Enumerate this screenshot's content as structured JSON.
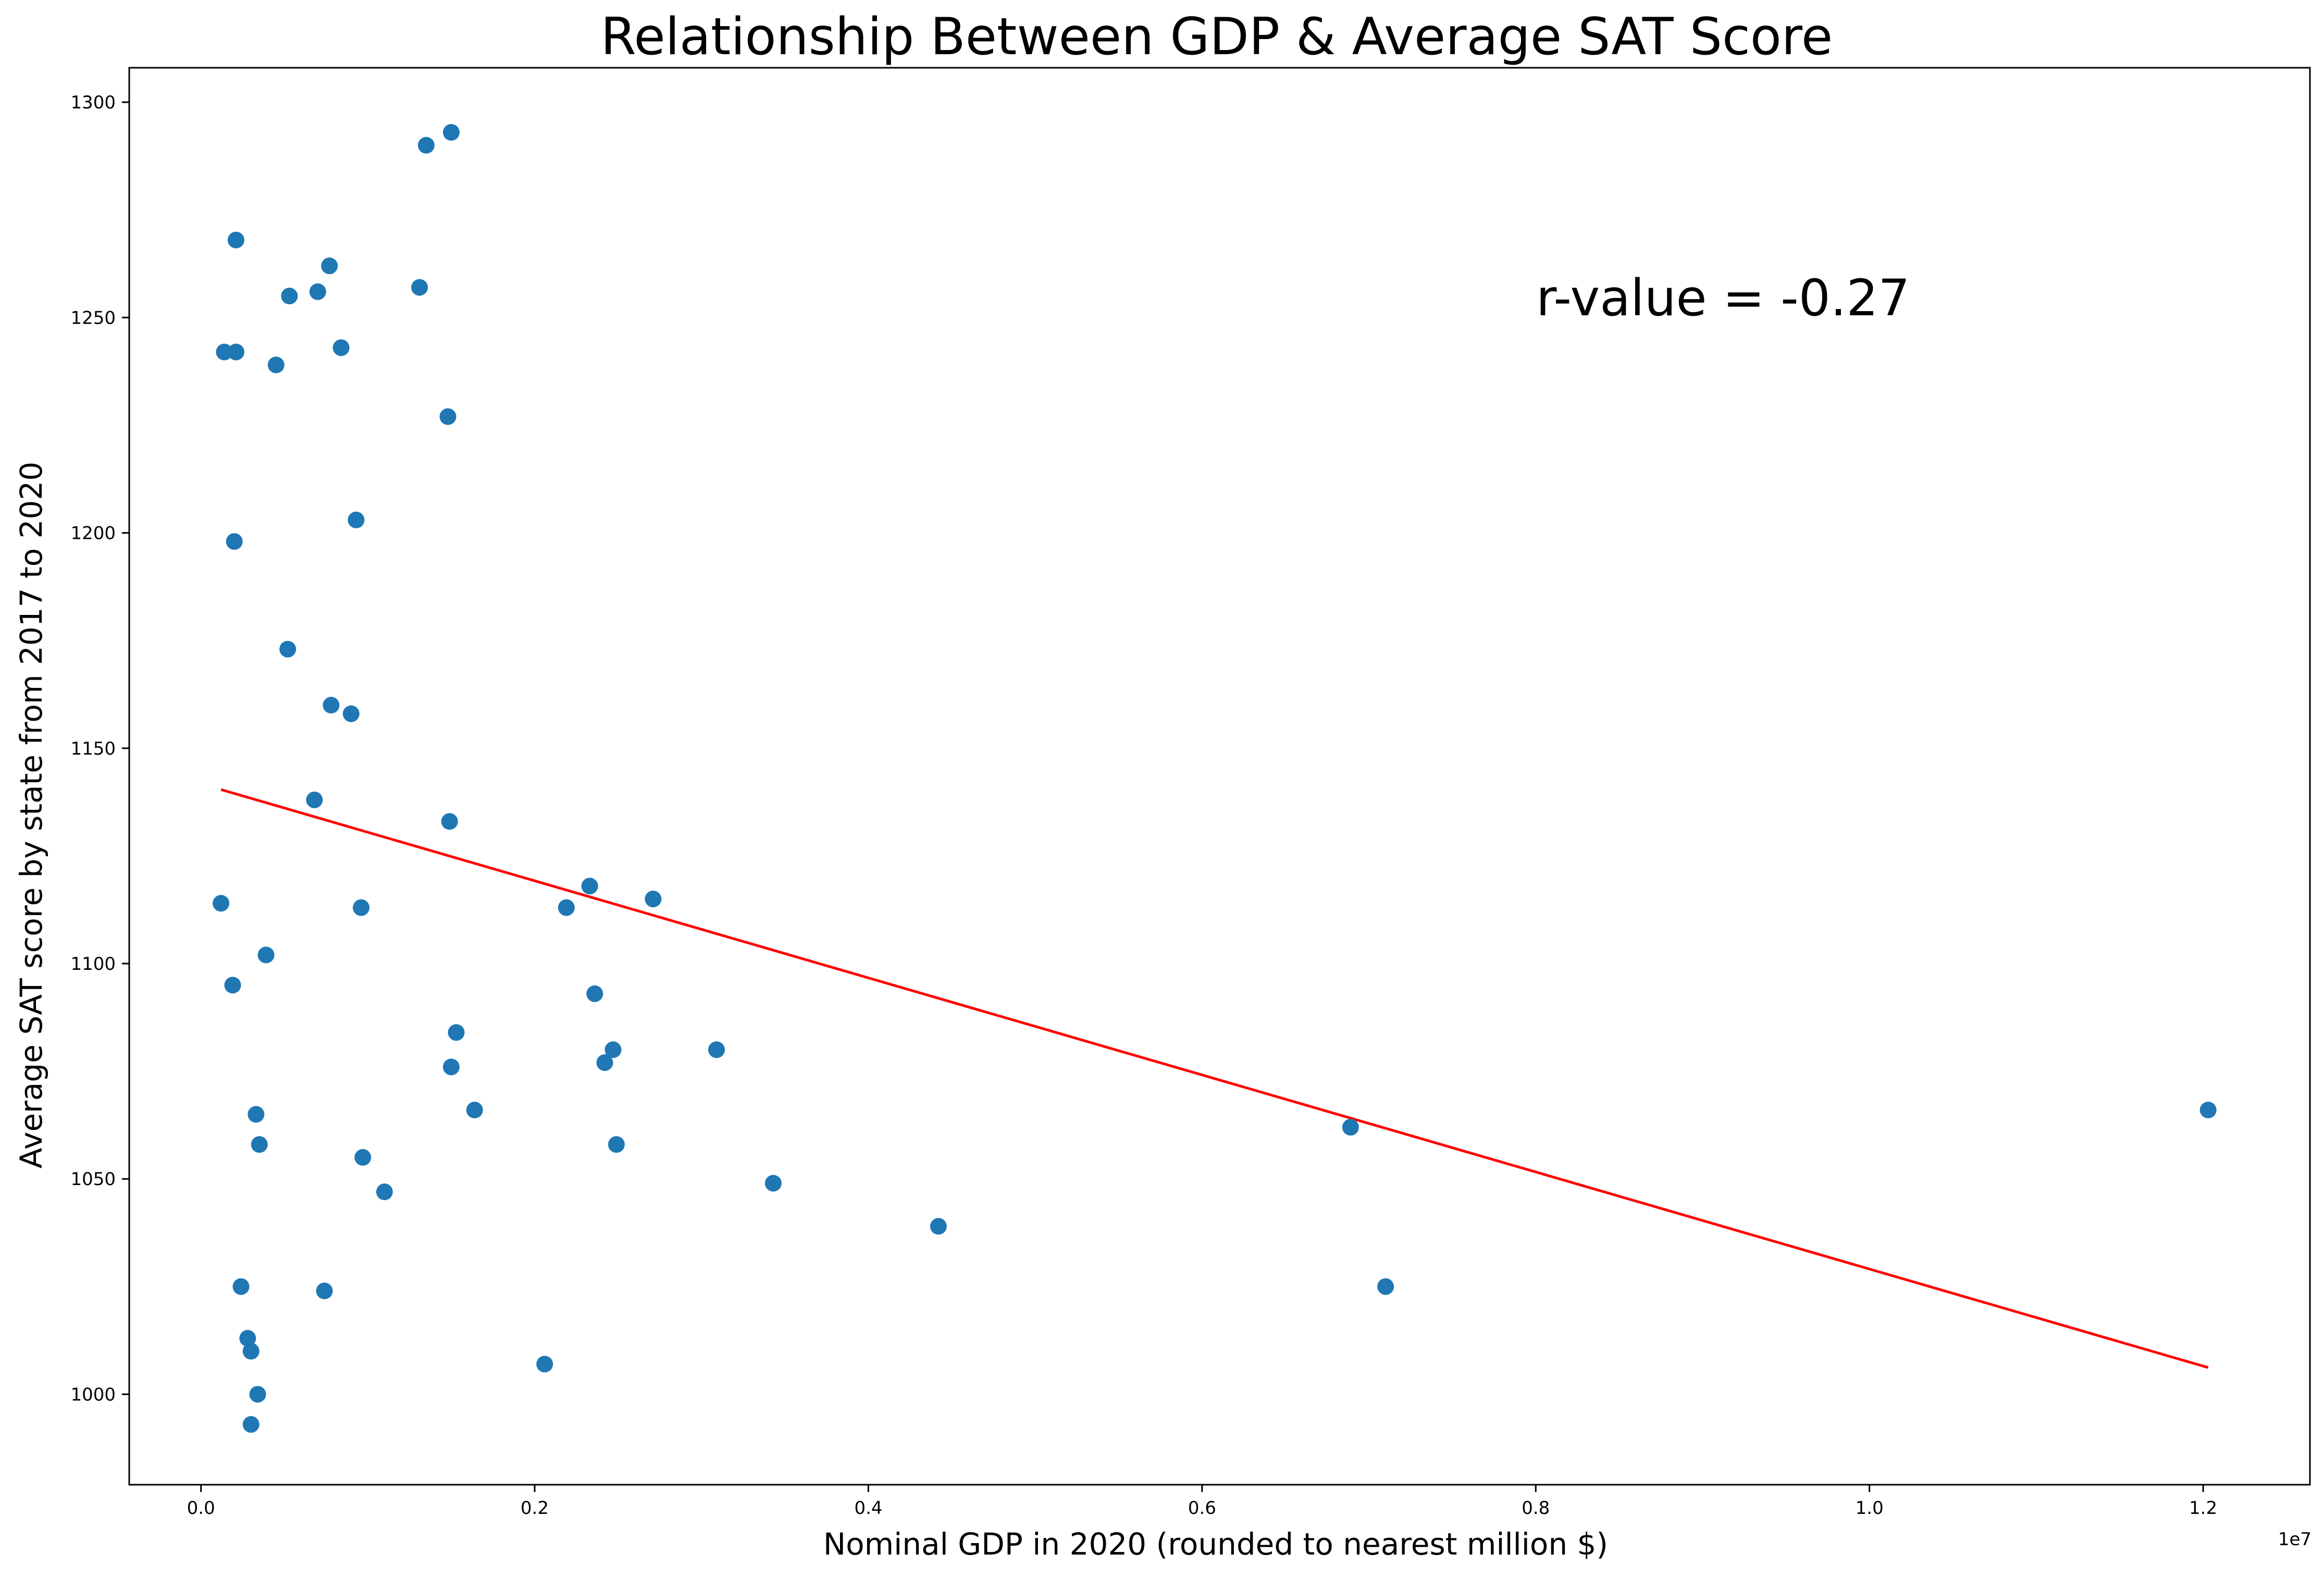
{
  "chart_data": {
    "type": "scatter",
    "title": "Relationship Between GDP & Average SAT Score",
    "xlabel": "Nominal GDP in 2020 (rounded to nearest million $)",
    "ylabel": "Average SAT score by state from 2017 to 2020",
    "x_offset_label": "1e7",
    "annotation": "r-value = -0.27",
    "xlim": [
      -430000,
      12640000
    ],
    "ylim": [
      979,
      1308
    ],
    "x_ticks": [
      {
        "value": 0,
        "label": "0.0"
      },
      {
        "value": 2000000,
        "label": "0.2"
      },
      {
        "value": 4000000,
        "label": "0.4"
      },
      {
        "value": 6000000,
        "label": "0.6"
      },
      {
        "value": 8000000,
        "label": "0.8"
      },
      {
        "value": 10000000,
        "label": "1.0"
      },
      {
        "value": 12000000,
        "label": "1.2"
      }
    ],
    "y_ticks": [
      {
        "value": 1000,
        "label": "1000"
      },
      {
        "value": 1050,
        "label": "1050"
      },
      {
        "value": 1100,
        "label": "1100"
      },
      {
        "value": 1150,
        "label": "1150"
      },
      {
        "value": 1200,
        "label": "1200"
      },
      {
        "value": 1250,
        "label": "1250"
      },
      {
        "value": 1300,
        "label": "1300"
      }
    ],
    "grid": false,
    "colors": {
      "points": "#1f77b4",
      "regression": "#ff0000",
      "axes": "#000000"
    },
    "series": [
      {
        "type": "scatter",
        "points": [
          [
            120000,
            1114
          ],
          [
            140000,
            1242
          ],
          [
            190000,
            1095
          ],
          [
            200000,
            1198
          ],
          [
            210000,
            1242
          ],
          [
            210000,
            1268
          ],
          [
            240000,
            1025
          ],
          [
            280000,
            1013
          ],
          [
            300000,
            993
          ],
          [
            300000,
            1010
          ],
          [
            330000,
            1065
          ],
          [
            340000,
            1000
          ],
          [
            350000,
            1058
          ],
          [
            390000,
            1102
          ],
          [
            450000,
            1239
          ],
          [
            520000,
            1173
          ],
          [
            530000,
            1255
          ],
          [
            680000,
            1138
          ],
          [
            700000,
            1256
          ],
          [
            740000,
            1024
          ],
          [
            770000,
            1262
          ],
          [
            780000,
            1160
          ],
          [
            840000,
            1243
          ],
          [
            900000,
            1158
          ],
          [
            930000,
            1203
          ],
          [
            960000,
            1113
          ],
          [
            970000,
            1055
          ],
          [
            1100000,
            1047
          ],
          [
            1310000,
            1257
          ],
          [
            1350000,
            1290
          ],
          [
            1480000,
            1227
          ],
          [
            1490000,
            1133
          ],
          [
            1500000,
            1076
          ],
          [
            1500000,
            1293
          ],
          [
            1530000,
            1084
          ],
          [
            1640000,
            1066
          ],
          [
            2060000,
            1007
          ],
          [
            2190000,
            1113
          ],
          [
            2330000,
            1118
          ],
          [
            2360000,
            1093
          ],
          [
            2420000,
            1077
          ],
          [
            2470000,
            1080
          ],
          [
            2490000,
            1058
          ],
          [
            2710000,
            1115
          ],
          [
            3090000,
            1080
          ],
          [
            3430000,
            1049
          ],
          [
            4420000,
            1039
          ],
          [
            6890000,
            1062
          ],
          [
            7100000,
            1025
          ],
          [
            12030000,
            1066
          ]
        ]
      },
      {
        "type": "line",
        "points": [
          [
            120000,
            1140.4
          ],
          [
            12030000,
            1006.2
          ]
        ]
      }
    ]
  }
}
